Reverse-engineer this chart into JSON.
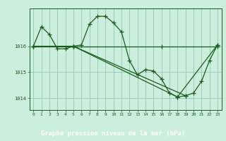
{
  "bg_color": "#cceedd",
  "plot_bg_color": "#cceedd",
  "line_color": "#1a5c1a",
  "marker_color": "#1a5c1a",
  "grid_color": "#99ccbb",
  "label_bg": "#2d6b2d",
  "label_fg": "#ffffff",
  "xlabel": "Graphe pression niveau de la mer (hPa)",
  "ytick_color": "#1a5c1a",
  "xtick_color": "#1a5c1a",
  "yticks": [
    1014,
    1015,
    1016
  ],
  "xticks": [
    0,
    1,
    2,
    3,
    4,
    5,
    6,
    7,
    8,
    9,
    10,
    11,
    12,
    13,
    14,
    15,
    16,
    17,
    18,
    19,
    20,
    21,
    22,
    23
  ],
  "xlim": [
    -0.5,
    23.5
  ],
  "ylim": [
    1013.55,
    1017.45
  ],
  "series1_x": [
    0,
    1,
    2,
    3,
    4,
    5,
    6,
    7,
    8,
    9,
    10,
    11,
    12,
    13,
    14,
    15,
    16,
    17,
    18,
    19,
    20,
    21,
    22,
    23
  ],
  "series1_y": [
    1016.0,
    1016.75,
    1016.45,
    1015.9,
    1015.9,
    1016.0,
    1016.05,
    1016.85,
    1017.15,
    1017.15,
    1016.9,
    1016.55,
    1015.45,
    1014.9,
    1015.1,
    1015.05,
    1014.75,
    1014.2,
    1014.05,
    1014.1,
    1014.2,
    1014.65,
    1015.45,
    1016.05
  ],
  "series2_x": [
    0,
    5,
    16,
    23
  ],
  "series2_y": [
    1016.0,
    1016.0,
    1016.0,
    1016.0
  ],
  "series3_x": [
    0,
    5,
    18,
    23
  ],
  "series3_y": [
    1016.0,
    1016.0,
    1014.05,
    1016.05
  ],
  "series4_x": [
    5,
    19
  ],
  "series4_y": [
    1016.0,
    1014.1
  ]
}
